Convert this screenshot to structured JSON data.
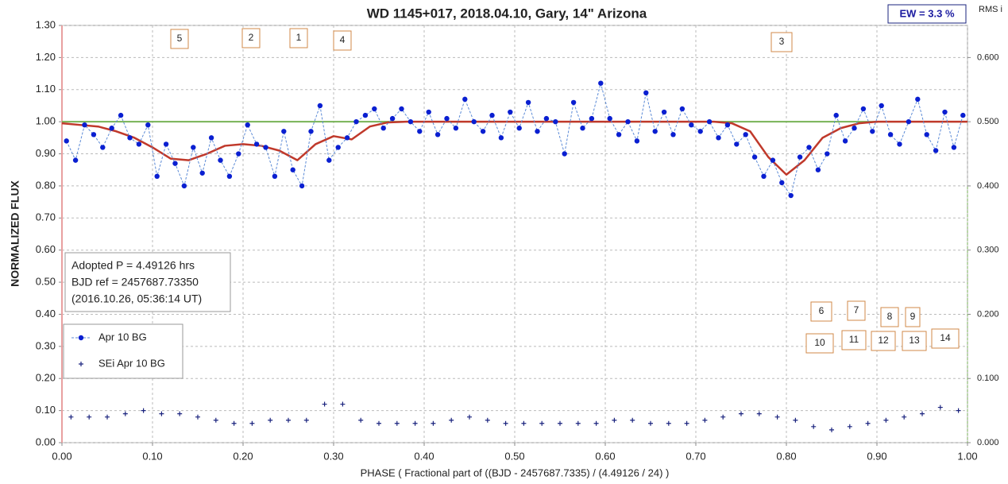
{
  "chart_data": {
    "type": "scatter",
    "title": "WD 1145+017, 2018.04.10, Gary,  14\" Arizona",
    "ew_label": "EW =  3.3 %",
    "y2_label": "RMS i",
    "ylabel": "NORMALIZED  FLUX",
    "xlabel": "PHASE  ( Fractional part of ((BJD - 2457687.7335)  / (4.49126  / 24) )",
    "info": [
      "Adopted P = 4.49126 hrs",
      "BJD ref = 2457687.73350",
      "(2016.10.26, 05:36:14 UT)"
    ],
    "annotations": [
      "5",
      "2",
      "1",
      "4",
      "3",
      "6",
      "7",
      "8",
      "9",
      "10",
      "11",
      "12",
      "13",
      "14"
    ],
    "grid": true,
    "xlim": [
      0,
      1
    ],
    "xticks": [
      {
        "value": 0,
        "label": "0.00"
      },
      {
        "value": 0.1,
        "label": "0.10"
      },
      {
        "value": 0.2,
        "label": "0.20"
      },
      {
        "value": 0.3,
        "label": "0.30"
      },
      {
        "value": 0.4,
        "label": "0.40"
      },
      {
        "value": 0.5,
        "label": "0.50"
      },
      {
        "value": 0.6,
        "label": "0.60"
      },
      {
        "value": 0.7,
        "label": "0.70"
      },
      {
        "value": 0.8,
        "label": "0.80"
      },
      {
        "value": 0.9,
        "label": "0.90"
      },
      {
        "value": 1,
        "label": "1.00"
      }
    ],
    "ylim": [
      0,
      1.3
    ],
    "yticks": [
      {
        "value": 0,
        "label": "0.00"
      },
      {
        "value": 0.1,
        "label": "0.10"
      },
      {
        "value": 0.2,
        "label": "0.20"
      },
      {
        "value": 0.3,
        "label": "0.30"
      },
      {
        "value": 0.4,
        "label": "0.40"
      },
      {
        "value": 0.5,
        "label": "0.50"
      },
      {
        "value": 0.6,
        "label": "0.60"
      },
      {
        "value": 0.7,
        "label": "0.70"
      },
      {
        "value": 0.8,
        "label": "0.80"
      },
      {
        "value": 0.9,
        "label": "0.90"
      },
      {
        "value": 1,
        "label": "1.00"
      },
      {
        "value": 1.1,
        "label": "1.10"
      },
      {
        "value": 1.2,
        "label": "1.20"
      },
      {
        "value": 1.3,
        "label": "1.30"
      }
    ],
    "y2lim": [
      0,
      0.65
    ],
    "y2ticks": [
      {
        "value": 0,
        "label": "0.000"
      },
      {
        "value": 0.1,
        "label": "0.100"
      },
      {
        "value": 0.2,
        "label": "0.200"
      },
      {
        "value": 0.3,
        "label": "0.300"
      },
      {
        "value": 0.4,
        "label": "0.400"
      },
      {
        "value": 0.5,
        "label": "0.500"
      },
      {
        "value": 0.6,
        "label": "0.600"
      }
    ],
    "baseline": 1,
    "baseline_color": "#77b255",
    "series": [
      {
        "name": "Apr 10 BG",
        "color": "#0a1fd1",
        "marker": "dot",
        "x": [
          0.005,
          0.015,
          0.025,
          0.035,
          0.045,
          0.055,
          0.065,
          0.075,
          0.085,
          0.095,
          0.105,
          0.115,
          0.125,
          0.135,
          0.145,
          0.155,
          0.165,
          0.175,
          0.185,
          0.195,
          0.205,
          0.215,
          0.225,
          0.235,
          0.245,
          0.255,
          0.265,
          0.275,
          0.285,
          0.295,
          0.305,
          0.315,
          0.325,
          0.335,
          0.345,
          0.355,
          0.365,
          0.375,
          0.385,
          0.395,
          0.405,
          0.415,
          0.425,
          0.435,
          0.445,
          0.455,
          0.465,
          0.475,
          0.485,
          0.495,
          0.505,
          0.515,
          0.525,
          0.535,
          0.545,
          0.555,
          0.565,
          0.575,
          0.585,
          0.595,
          0.605,
          0.615,
          0.625,
          0.635,
          0.645,
          0.655,
          0.665,
          0.675,
          0.685,
          0.695,
          0.705,
          0.715,
          0.725,
          0.735,
          0.745,
          0.755,
          0.765,
          0.775,
          0.785,
          0.795,
          0.805,
          0.815,
          0.825,
          0.835,
          0.845,
          0.855,
          0.865,
          0.875,
          0.885,
          0.895,
          0.905,
          0.915,
          0.925,
          0.935,
          0.945,
          0.955,
          0.965,
          0.975,
          0.985,
          0.995
        ],
        "values": [
          0.94,
          0.88,
          0.99,
          0.96,
          0.92,
          0.98,
          1.02,
          0.95,
          0.93,
          0.99,
          0.83,
          0.93,
          0.87,
          0.8,
          0.92,
          0.84,
          0.95,
          0.88,
          0.83,
          0.9,
          0.99,
          0.93,
          0.92,
          0.83,
          0.97,
          0.85,
          0.8,
          0.97,
          1.05,
          0.88,
          0.92,
          0.95,
          1.0,
          1.02,
          1.04,
          0.98,
          1.01,
          1.04,
          1.0,
          0.97,
          1.03,
          0.96,
          1.01,
          0.98,
          1.07,
          1.0,
          0.97,
          1.02,
          0.95,
          1.03,
          0.98,
          1.06,
          0.97,
          1.01,
          1.0,
          0.9,
          1.06,
          0.98,
          1.01,
          1.12,
          1.01,
          0.96,
          1.0,
          0.94,
          1.09,
          0.97,
          1.03,
          0.96,
          1.04,
          0.99,
          0.97,
          1.0,
          0.95,
          0.99,
          0.93,
          0.96,
          0.89,
          0.83,
          0.88,
          0.81,
          0.77,
          0.89,
          0.92,
          0.85,
          0.9,
          1.02,
          0.94,
          0.98,
          1.04,
          0.97,
          1.05,
          0.96,
          0.93,
          1.0,
          1.07,
          0.96,
          0.91,
          1.03,
          0.92,
          1.02
        ]
      },
      {
        "name": "SEi Apr 10 BG",
        "color": "#1a237e",
        "marker": "plus",
        "x": [
          0.01,
          0.03,
          0.05,
          0.07,
          0.09,
          0.11,
          0.13,
          0.15,
          0.17,
          0.19,
          0.21,
          0.23,
          0.25,
          0.27,
          0.29,
          0.31,
          0.33,
          0.35,
          0.37,
          0.39,
          0.41,
          0.43,
          0.45,
          0.47,
          0.49,
          0.51,
          0.53,
          0.55,
          0.57,
          0.59,
          0.61,
          0.63,
          0.65,
          0.67,
          0.69,
          0.71,
          0.73,
          0.75,
          0.77,
          0.79,
          0.81,
          0.83,
          0.85,
          0.87,
          0.89,
          0.91,
          0.93,
          0.95,
          0.97,
          0.99
        ],
        "values": [
          0.08,
          0.08,
          0.08,
          0.09,
          0.1,
          0.09,
          0.09,
          0.08,
          0.07,
          0.06,
          0.06,
          0.07,
          0.07,
          0.07,
          0.12,
          0.12,
          0.07,
          0.06,
          0.06,
          0.06,
          0.06,
          0.07,
          0.08,
          0.07,
          0.06,
          0.06,
          0.06,
          0.06,
          0.06,
          0.06,
          0.07,
          0.07,
          0.06,
          0.06,
          0.06,
          0.07,
          0.08,
          0.09,
          0.09,
          0.08,
          0.07,
          0.05,
          0.04,
          0.05,
          0.06,
          0.07,
          0.08,
          0.09,
          0.11,
          0.1
        ]
      },
      {
        "color": "#c0392b",
        "marker": "line",
        "x": [
          0,
          0.02,
          0.04,
          0.06,
          0.08,
          0.1,
          0.12,
          0.14,
          0.16,
          0.18,
          0.2,
          0.22,
          0.24,
          0.26,
          0.28,
          0.3,
          0.32,
          0.34,
          0.36,
          0.38,
          0.4,
          0.42,
          0.44,
          0.46,
          0.48,
          0.5,
          0.52,
          0.54,
          0.56,
          0.58,
          0.6,
          0.62,
          0.64,
          0.66,
          0.68,
          0.7,
          0.72,
          0.74,
          0.76,
          0.78,
          0.8,
          0.82,
          0.84,
          0.86,
          0.88,
          0.9,
          0.92,
          0.94,
          0.96,
          0.98,
          1
        ],
        "values": [
          0.995,
          0.99,
          0.985,
          0.97,
          0.95,
          0.92,
          0.885,
          0.88,
          0.9,
          0.925,
          0.93,
          0.925,
          0.91,
          0.88,
          0.93,
          0.955,
          0.945,
          0.985,
          0.998,
          1,
          1,
          1,
          1,
          1,
          1,
          1,
          1,
          1,
          1,
          1,
          1,
          1,
          1,
          1,
          1,
          1,
          1,
          0.995,
          0.97,
          0.89,
          0.835,
          0.88,
          0.95,
          0.98,
          0.995,
          1,
          1,
          1,
          1,
          1,
          1
        ]
      }
    ]
  }
}
